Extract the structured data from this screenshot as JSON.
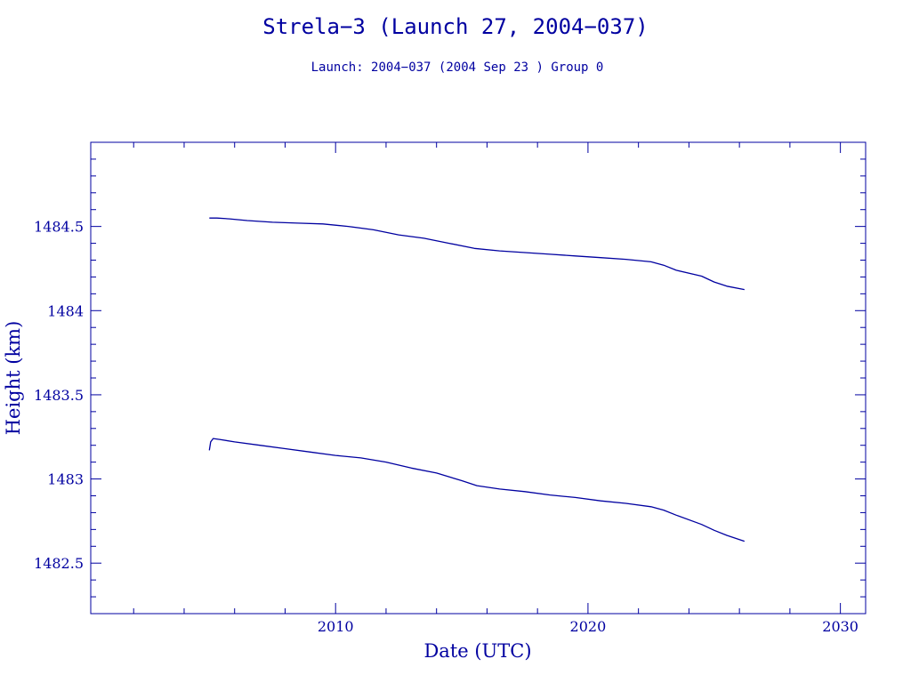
{
  "chart_data": {
    "type": "line",
    "title": "Strela−3 (Launch 27, 2004−037)",
    "subtitle": "Launch: 2004−037  (2004 Sep 23 )  Group 0",
    "xlabel": "Date (UTC)",
    "ylabel": "Height (km)",
    "xlim": [
      2000.3,
      2031.0
    ],
    "ylim": [
      1482.2,
      1485.0
    ],
    "x_ticks": [
      2010,
      2020,
      2030
    ],
    "x_tick_labels": [
      "2010",
      "2020",
      "2030"
    ],
    "y_ticks": [
      1482.5,
      1483,
      1483.5,
      1484,
      1484.5
    ],
    "y_tick_labels": [
      "1482.5",
      "1483",
      "1483.5",
      "1484",
      "1484.5"
    ],
    "grid": false,
    "line_color": "#0000a0",
    "series": [
      {
        "x": [
          2005.0,
          2005.3,
          2005.8,
          2006.5,
          2007.5,
          2008.5,
          2009.5,
          2010.5,
          2011.5,
          2012.5,
          2013.5,
          2014.5,
          2015.5,
          2016.5,
          2017.5,
          2018.5,
          2019.5,
          2020.5,
          2021.5,
          2022.5,
          2023.0,
          2023.5,
          2024.5,
          2025.0,
          2025.5,
          2026.2
        ],
        "y": [
          1484.55,
          1484.55,
          1484.545,
          1484.535,
          1484.525,
          1484.52,
          1484.515,
          1484.5,
          1484.48,
          1484.45,
          1484.43,
          1484.4,
          1484.37,
          1484.355,
          1484.345,
          1484.335,
          1484.325,
          1484.315,
          1484.305,
          1484.29,
          1484.27,
          1484.24,
          1484.205,
          1484.17,
          1484.145,
          1484.125
        ]
      },
      {
        "x": [
          2005.0,
          2005.05,
          2005.15,
          2005.4,
          2006.0,
          2007.0,
          2008.0,
          2009.0,
          2010.0,
          2011.0,
          2012.0,
          2013.0,
          2014.0,
          2015.0,
          2015.6,
          2016.5,
          2017.5,
          2018.5,
          2019.5,
          2020.5,
          2021.5,
          2022.5,
          2023.0,
          2023.5,
          2024.5,
          2025.0,
          2025.5,
          2026.2
        ],
        "y": [
          1483.17,
          1483.22,
          1483.24,
          1483.235,
          1483.22,
          1483.2,
          1483.18,
          1483.16,
          1483.14,
          1483.125,
          1483.1,
          1483.065,
          1483.035,
          1482.99,
          1482.96,
          1482.94,
          1482.925,
          1482.905,
          1482.89,
          1482.87,
          1482.855,
          1482.835,
          1482.815,
          1482.785,
          1482.73,
          1482.695,
          1482.665,
          1482.63
        ]
      }
    ]
  }
}
